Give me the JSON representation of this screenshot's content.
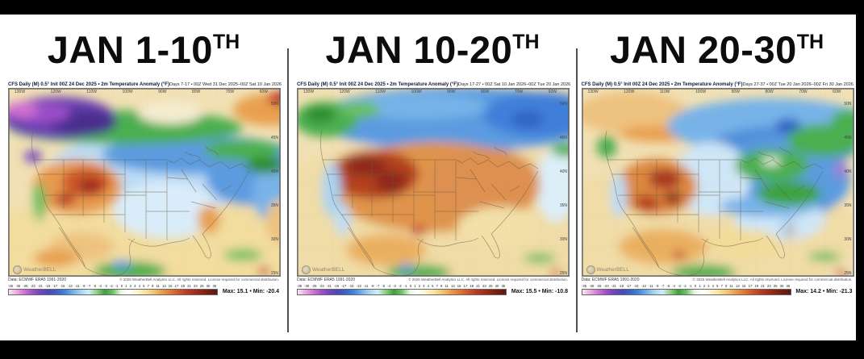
{
  "page": {
    "background": "#000000",
    "panel_background": "#ffffff",
    "divider_color": "#4f4f4f"
  },
  "panels": [
    {
      "title": "JAN 1-10",
      "title_sup": "TH",
      "header_left": "CFS Daily (M) 0.5° Init 00Z 24 Dec 2025 • 2m Temperature Anomaly (°F)",
      "header_right": "Days 7-17 • 00Z Wed 31 Dec 2025–00Z Sat 10 Jan 2026",
      "footer_left": "Data: ECMWF ERA5 1991-2020",
      "footer_right": "© 2025 WeatherBell Analytics LLC. All rights reserved. License required for commercial distribution.",
      "stats": "Max: 15.1 • Min: -20.4"
    },
    {
      "title": "JAN 10-20",
      "title_sup": "TH",
      "header_left": "CFS Daily (M) 0.5° Init 00Z 24 Dec 2025 • 2m Temperature Anomaly (°F)",
      "header_right": "Days 17-27 • 00Z Sat 10 Jan 2026–00Z Tue 20 Jan 2026",
      "footer_left": "Data: ECMWF ERA5 1991-2020",
      "footer_right": "© 2025 WeatherBell Analytics LLC. All rights reserved. License required for commercial distribution.",
      "stats": "Max: 15.5 • Min: -10.8"
    },
    {
      "title": "JAN 20-30",
      "title_sup": "TH",
      "header_left": "CFS Daily (M) 0.5° Init 00Z 24 Dec 2025 • 2m Temperature Anomaly (°F)",
      "header_right": "Days 27-37 • 00Z Tue 20 Jan 2026–00Z Fri 30 Jan 2026",
      "footer_left": "Data: ECMWF ERA5 1991-2020",
      "footer_right": "© 2025 WeatherBell Analytics LLC. All rights reserved. License required for commercial distribution.",
      "stats": "Max: 14.2 • Min: -21.3"
    }
  ],
  "map": {
    "watermark": "WeatherBELL",
    "lon_labels": [
      "130W",
      "120W",
      "110W",
      "100W",
      "90W",
      "80W",
      "70W",
      "60W"
    ],
    "lat_labels": [
      "50N",
      "45N",
      "40N",
      "35N",
      "30N",
      "25N"
    ]
  },
  "colorbar": {
    "ticks": [
      "-35",
      "-30",
      "-25",
      "-23",
      "-21",
      "-19",
      "-17",
      "-15",
      "-13",
      "-11",
      "-9",
      "-7",
      "-5",
      "-4",
      "-3",
      "-2",
      "-1",
      "0",
      "1",
      "2",
      "3",
      "4",
      "5",
      "7",
      "9",
      "11",
      "13",
      "15",
      "17",
      "19",
      "21",
      "23",
      "25",
      "30",
      "35"
    ],
    "colors": [
      "#f7e6f5",
      "#eba9e0",
      "#cf6fd4",
      "#9b4fc8",
      "#6f46bc",
      "#4b49b8",
      "#3a62cc",
      "#3f86dd",
      "#6fb0ea",
      "#a6d5f4",
      "#cfeefb",
      "#8fd080",
      "#3f9e3f",
      "#6fc468",
      "#e8f5e2",
      "#ffffff",
      "#fdf4cf",
      "#f8e4a0",
      "#f3c878",
      "#eca24f",
      "#e27f38",
      "#d55b2b",
      "#c43f24",
      "#ac2f1b",
      "#912414",
      "#771c10",
      "#5e1610"
    ]
  }
}
